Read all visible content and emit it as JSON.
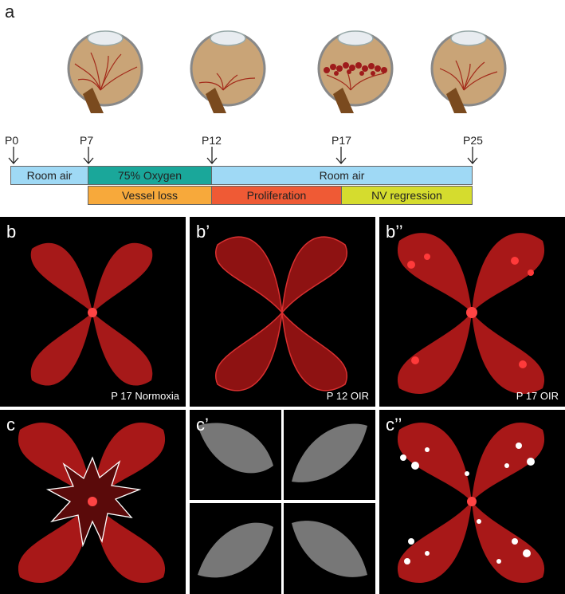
{
  "panel_a": {
    "letter": "a",
    "timepoints": [
      "P0",
      "P7",
      "P12",
      "P17",
      "P25"
    ],
    "oxygen_bars": [
      "Room air",
      "75% Oxygen",
      "Room air"
    ],
    "stage_bars": [
      "Vessel loss",
      "Proliferation",
      "NV regression"
    ],
    "colors": {
      "room_air": "#9fd9f5",
      "oxygen": "#1aa79a",
      "vessel_loss": "#f7a93b",
      "proliferation": "#ef5a35",
      "nv_regression": "#d5dc2e"
    },
    "eye_icons": [
      "normal-eye-icon",
      "vessel-loss-eye-icon",
      "neovascular-eye-icon",
      "regressed-eye-icon"
    ]
  },
  "panel_b": [
    {
      "tag": "b",
      "caption": "P 17 Normoxia"
    },
    {
      "tag": "b’",
      "caption": "P 12 OIR"
    },
    {
      "tag": "b’’",
      "caption": "P 17 OIR"
    }
  ],
  "panel_c": [
    {
      "tag": "c"
    },
    {
      "tag": "c’"
    },
    {
      "tag": "c’’"
    }
  ]
}
